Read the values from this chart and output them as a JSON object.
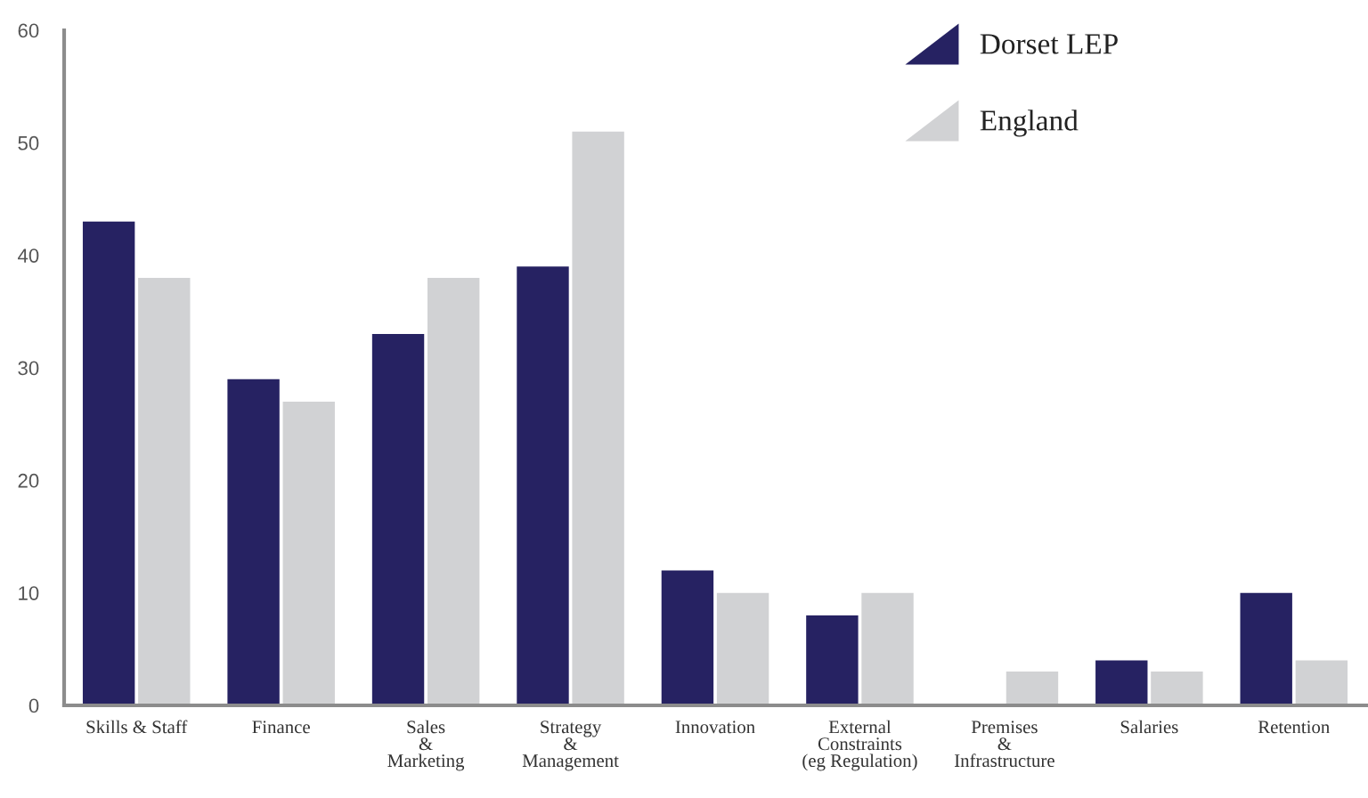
{
  "chart_data": {
    "type": "bar",
    "categories": [
      "Skills & Staff",
      "Finance",
      "Sales\n&\nMarketing",
      "Strategy\n&\nManagement",
      "Innovation",
      "External\nConstraints\n(eg Regulation)",
      "Premises\n&\nInfrastructure",
      "Salaries",
      "Retention"
    ],
    "series": [
      {
        "name": "Dorset LEP",
        "color": "#262262",
        "values": [
          43,
          29,
          33,
          39,
          12,
          8,
          0,
          4,
          10
        ]
      },
      {
        "name": "England",
        "color": "#d1d2d4",
        "values": [
          38,
          27,
          38,
          51,
          10,
          10,
          3,
          3,
          4
        ]
      }
    ],
    "ylim": [
      0,
      60
    ],
    "yticks": [
      0,
      10,
      20,
      30,
      40,
      50,
      60
    ],
    "legend": "top right"
  }
}
